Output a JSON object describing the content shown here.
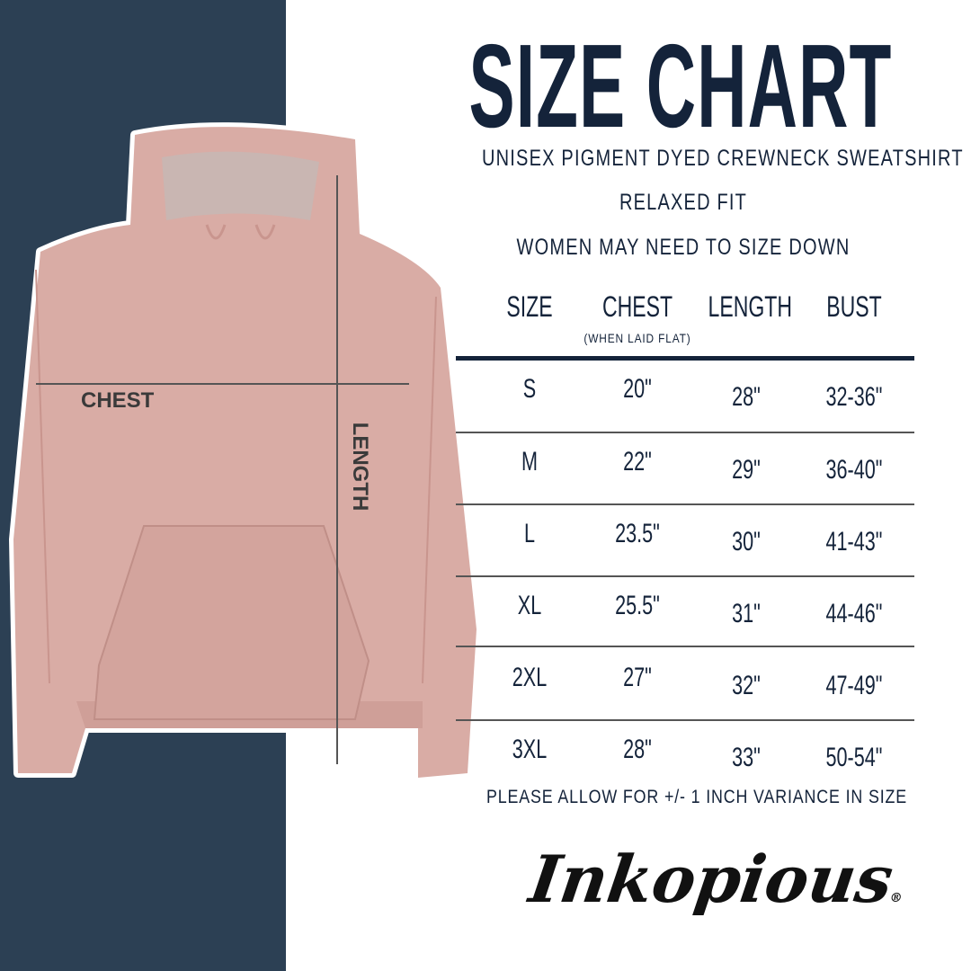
{
  "title": "SIZE CHART",
  "subtitle_lines": [
    "UNISEX PIGMENT DYED CREWNECK SWEATSHIRT",
    "RELAXED FIT",
    "WOMEN MAY NEED TO SIZE DOWN"
  ],
  "diagram": {
    "chest_label": "CHEST",
    "length_label": "LENGTH"
  },
  "table": {
    "headers": [
      "SIZE",
      "CHEST",
      "LENGTH",
      "BUST"
    ],
    "chest_note": "(WHEN LAID FLAT)",
    "rows": [
      [
        "S",
        "20\"",
        "28\"",
        "32-36\""
      ],
      [
        "M",
        "22\"",
        "29\"",
        "36-40\""
      ],
      [
        "L",
        "23.5\"",
        "30\"",
        "41-43\""
      ],
      [
        "XL",
        "25.5\"",
        "31\"",
        "44-46\""
      ],
      [
        "2XL",
        "27\"",
        "32\"",
        "47-49\""
      ],
      [
        "3XL",
        "28\"",
        "33\"",
        "50-54\""
      ]
    ]
  },
  "note": "PLEASE ALLOW FOR +/- 1 INCH VARIANCE IN SIZE",
  "logo": "Inkopious®",
  "colors": {
    "navy": "#2c4054",
    "text": "#14233a",
    "hoodie": "#d9aca5"
  }
}
